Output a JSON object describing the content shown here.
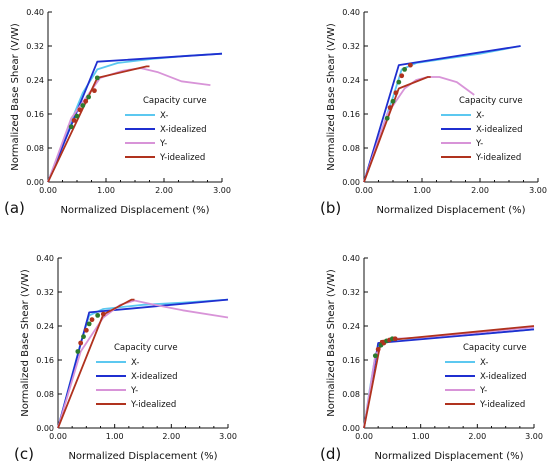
{
  "colors": {
    "X": "#5cc8f0",
    "X-idealized": "#1f2fd0",
    "Y": "#d894d8",
    "Y-idealized": "#b0321e",
    "axis": "#111111",
    "marker": "#2d7a2d"
  },
  "chart_data": [
    {
      "type": "line",
      "panel_label": "(a)",
      "xlabel": "Normalized Displacement (%)",
      "ylabel": "Normalized Base Shear (V/W)",
      "xlim": [
        0,
        3
      ],
      "ylim": [
        0,
        0.4
      ],
      "xticks": [
        "0.00",
        "1.00",
        "2.00",
        "3.00"
      ],
      "yticks": [
        "0.00",
        "0.08",
        "0.16",
        "0.24",
        "0.32",
        "0.40"
      ],
      "legend_title": "Capacity curve",
      "series": [
        {
          "name": "X-",
          "x": [
            0,
            0.3,
            0.6,
            0.85,
            1.2,
            1.8,
            2.4,
            3.0
          ],
          "y": [
            0,
            0.11,
            0.21,
            0.265,
            0.28,
            0.29,
            0.297,
            0.302
          ]
        },
        {
          "name": "X-idealized",
          "x": [
            0,
            0.85,
            3.0
          ],
          "y": [
            0,
            0.283,
            0.302
          ]
        },
        {
          "name": "Y-",
          "x": [
            0,
            0.4,
            0.9,
            1.3,
            1.6,
            1.9,
            2.3,
            2.8
          ],
          "y": [
            0,
            0.15,
            0.245,
            0.262,
            0.268,
            0.258,
            0.237,
            0.228
          ]
        },
        {
          "name": "Y-idealized",
          "x": [
            0,
            0.85,
            1.7,
            1.75
          ],
          "y": [
            0,
            0.245,
            0.272,
            0.272
          ]
        }
      ],
      "markers": {
        "x": [
          0.4,
          0.45,
          0.5,
          0.55,
          0.6,
          0.65,
          0.7,
          0.8,
          0.85
        ],
        "y": [
          0.13,
          0.145,
          0.155,
          0.17,
          0.18,
          0.19,
          0.2,
          0.215,
          0.245
        ]
      }
    },
    {
      "type": "line",
      "panel_label": "(b)",
      "xlabel": "Normalized Displacement (%)",
      "ylabel": "Normalized Base Shear (V/W)",
      "xlim": [
        0,
        3
      ],
      "ylim": [
        0,
        0.4
      ],
      "xticks": [
        "0.00",
        "1.00",
        "2.00",
        "3.00"
      ],
      "yticks": [
        "0.00",
        "0.08",
        "0.16",
        "0.24",
        "0.32",
        "0.40"
      ],
      "legend_title": "Capacity curve",
      "series": [
        {
          "name": "X-",
          "x": [
            0,
            0.25,
            0.5,
            0.65,
            0.9,
            1.5,
            2.0,
            2.7
          ],
          "y": [
            0,
            0.1,
            0.2,
            0.265,
            0.28,
            0.292,
            0.302,
            0.32
          ]
        },
        {
          "name": "X-idealized",
          "x": [
            0,
            0.6,
            2.7
          ],
          "y": [
            0,
            0.275,
            0.32
          ]
        },
        {
          "name": "Y-",
          "x": [
            0,
            0.4,
            0.7,
            0.9,
            1.1,
            1.3,
            1.6,
            1.9
          ],
          "y": [
            0,
            0.16,
            0.22,
            0.24,
            0.247,
            0.247,
            0.235,
            0.205
          ]
        },
        {
          "name": "Y-idealized",
          "x": [
            0,
            0.6,
            1.1,
            1.15
          ],
          "y": [
            0,
            0.22,
            0.247,
            0.247
          ]
        }
      ],
      "markers": {
        "x": [
          0.4,
          0.45,
          0.5,
          0.55,
          0.6,
          0.65,
          0.7,
          0.8
        ],
        "y": [
          0.15,
          0.175,
          0.19,
          0.21,
          0.235,
          0.25,
          0.265,
          0.275
        ]
      }
    },
    {
      "type": "line",
      "panel_label": "(c)",
      "xlabel": "Normalized Displacement (%)",
      "ylabel": "Normalized Base Shear (V/W)",
      "xlim": [
        0,
        3
      ],
      "ylim": [
        0,
        0.4
      ],
      "xticks": [
        "0.00",
        "1.00",
        "2.00",
        "3.00"
      ],
      "yticks": [
        "0.00",
        "0.08",
        "0.16",
        "0.24",
        "0.32",
        "0.40"
      ],
      "legend_title": "Capacity curve",
      "series": [
        {
          "name": "X-",
          "x": [
            0,
            0.2,
            0.4,
            0.55,
            0.8,
            1.5,
            2.2,
            3.0
          ],
          "y": [
            0,
            0.1,
            0.2,
            0.265,
            0.28,
            0.29,
            0.295,
            0.302
          ]
        },
        {
          "name": "X-idealized",
          "x": [
            0,
            0.55,
            3.0
          ],
          "y": [
            0,
            0.272,
            0.302
          ]
        },
        {
          "name": "Y-",
          "x": [
            0,
            0.4,
            0.8,
            1.1,
            1.35,
            1.7,
            2.2,
            3.0
          ],
          "y": [
            0,
            0.18,
            0.26,
            0.29,
            0.3,
            0.29,
            0.277,
            0.26
          ]
        },
        {
          "name": "Y-idealized",
          "x": [
            0,
            0.8,
            1.3,
            1.35
          ],
          "y": [
            0,
            0.267,
            0.302,
            0.302
          ]
        }
      ],
      "markers": {
        "x": [
          0.35,
          0.4,
          0.45,
          0.5,
          0.55,
          0.6,
          0.7,
          0.8
        ],
        "y": [
          0.18,
          0.2,
          0.215,
          0.23,
          0.245,
          0.255,
          0.265,
          0.268
        ]
      }
    },
    {
      "type": "line",
      "panel_label": "(d)",
      "xlabel": "Normalized Displacement (%)",
      "ylabel": "Normalized Base Shear (V/W)",
      "xlim": [
        0,
        3
      ],
      "ylim": [
        0,
        0.4
      ],
      "xticks": [
        "0.00",
        "1.00",
        "2.00",
        "3.00"
      ],
      "yticks": [
        "0.00",
        "0.08",
        "0.16",
        "0.24",
        "0.32",
        "0.40"
      ],
      "legend_title": "Capacity curve",
      "series": [
        {
          "name": "X-",
          "x": [
            0,
            0.1,
            0.2,
            0.3,
            0.6,
            1.2,
            2.0,
            3.0
          ],
          "y": [
            0,
            0.09,
            0.17,
            0.2,
            0.21,
            0.213,
            0.22,
            0.232
          ]
        },
        {
          "name": "X-idealized",
          "x": [
            0,
            0.25,
            3.0
          ],
          "y": [
            0,
            0.2,
            0.232
          ]
        },
        {
          "name": "Y-",
          "x": [
            0,
            0.2,
            0.35,
            0.55,
            1.0,
            1.8,
            2.6,
            3.0
          ],
          "y": [
            0,
            0.17,
            0.205,
            0.21,
            0.213,
            0.222,
            0.232,
            0.237
          ]
        },
        {
          "name": "Y-idealized",
          "x": [
            0,
            0.3,
            3.0
          ],
          "y": [
            0,
            0.205,
            0.24
          ]
        }
      ],
      "markers": {
        "x": [
          0.2,
          0.25,
          0.3,
          0.35,
          0.4,
          0.45,
          0.5,
          0.55
        ],
        "y": [
          0.17,
          0.185,
          0.195,
          0.2,
          0.205,
          0.207,
          0.21,
          0.21
        ]
      }
    }
  ]
}
